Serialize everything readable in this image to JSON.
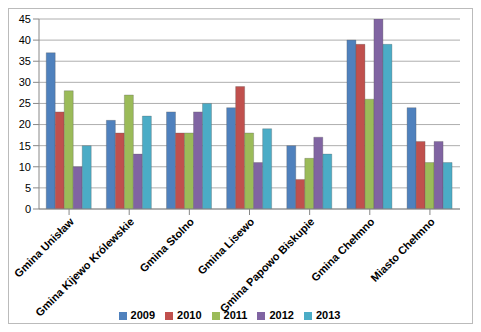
{
  "chart_data": {
    "type": "bar",
    "categories": [
      "Gmina Unisław",
      "Gmina Kijewo Królewskie",
      "Gmina Stolno",
      "Gmina Lisewo",
      "Gmina Papowo Biskupie",
      "Gmina Chełmno",
      "Miasto Chełmno"
    ],
    "series": [
      {
        "name": "2009",
        "color": "#4f81bd",
        "values": [
          37,
          21,
          23,
          24,
          15,
          40,
          24
        ]
      },
      {
        "name": "2010",
        "color": "#c0504d",
        "values": [
          23,
          18,
          18,
          29,
          7,
          39,
          16
        ]
      },
      {
        "name": "2011",
        "color": "#9bbb59",
        "values": [
          28,
          27,
          18,
          18,
          12,
          26,
          11
        ]
      },
      {
        "name": "2012",
        "color": "#8064a2",
        "values": [
          10,
          13,
          23,
          11,
          17,
          45,
          16
        ]
      },
      {
        "name": "2013",
        "color": "#4bacc6",
        "values": [
          15,
          22,
          25,
          19,
          13,
          39,
          11
        ]
      }
    ],
    "ylim": [
      0,
      45
    ],
    "yticks": [
      0,
      5,
      10,
      15,
      20,
      25,
      30,
      35,
      40,
      45
    ],
    "grid": true,
    "legend": "bottom"
  }
}
